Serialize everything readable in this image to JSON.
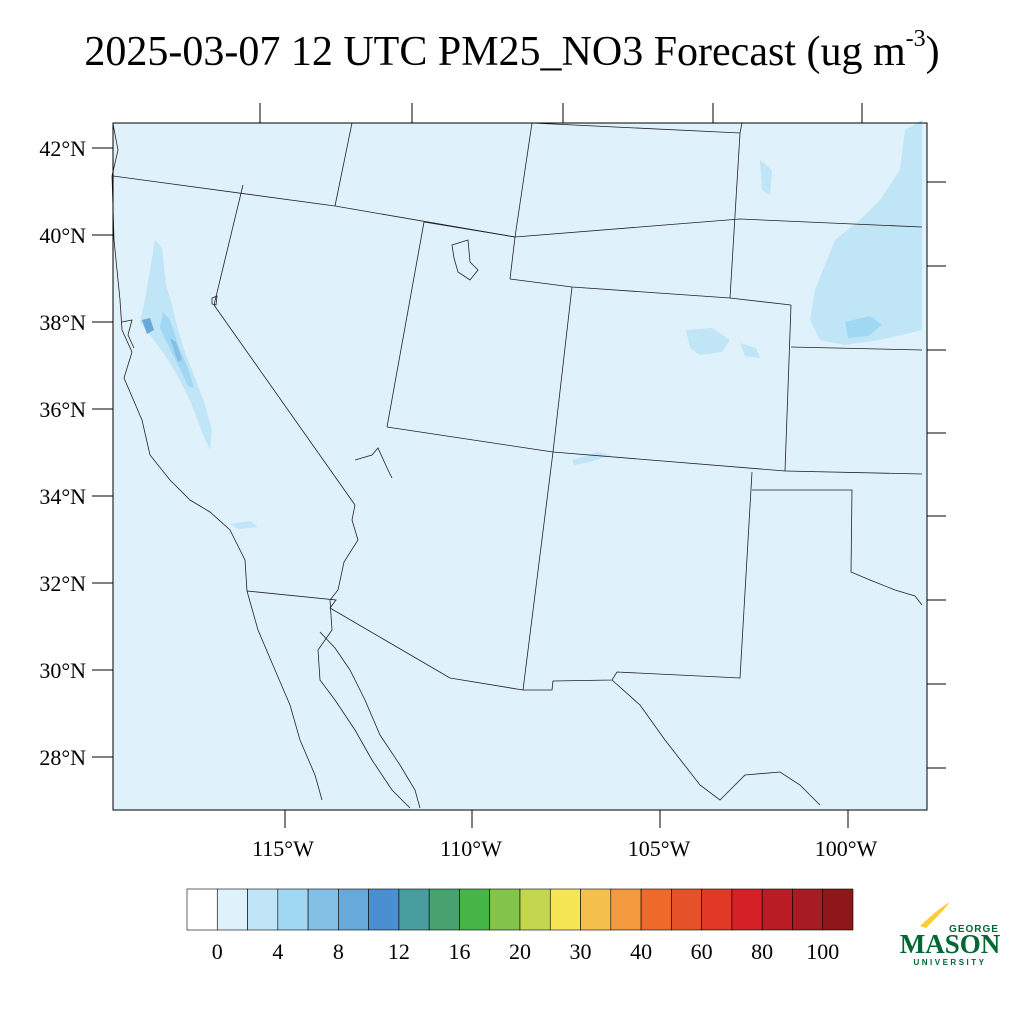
{
  "title": {
    "main": "2025-03-07 12 UTC PM25_NO3 Forecast (ug m",
    "superscript": "-3",
    "close": ")"
  },
  "map": {
    "lat_labels": [
      "42°N",
      "40°N",
      "38°N",
      "36°N",
      "34°N",
      "32°N",
      "30°N",
      "28°N"
    ],
    "lon_labels": [
      "115°W",
      "110°W",
      "105°W",
      "100°W"
    ],
    "background_color": "#dff1fb",
    "border_color": "#000000"
  },
  "colorbar": {
    "colors": [
      "#ffffff",
      "#dff1fb",
      "#bfe5f7",
      "#a0d7f3",
      "#84c0e6",
      "#67a9db",
      "#4a8fcf",
      "#489d9f",
      "#47a26f",
      "#46b446",
      "#83c54a",
      "#c3d64e",
      "#f6e655",
      "#f5bf4d",
      "#f29a3d",
      "#ef6a2a",
      "#e55128",
      "#e03a26",
      "#d62028",
      "#b91c25",
      "#a71b22",
      "#8f171b"
    ],
    "tick_labels": [
      "0",
      "4",
      "8",
      "12",
      "16",
      "20",
      "30",
      "40",
      "60",
      "80",
      "100"
    ]
  },
  "logo": {
    "top": "GEORGE",
    "main": "MASON",
    "bottom": "UNIVERSITY",
    "color": "#006633",
    "accent": "#ffcc33"
  }
}
